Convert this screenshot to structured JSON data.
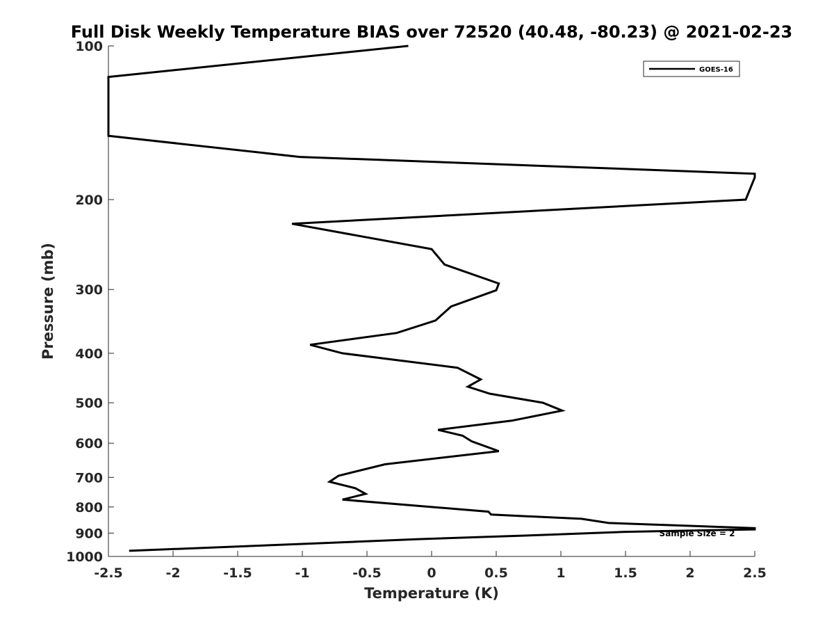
{
  "chart_data": {
    "type": "line",
    "title": "Full Disk Weekly Temperature BIAS over 72520 (40.48, -80.23) @ 2021-02-23",
    "xlabel": "Temperature (K)",
    "ylabel": "Pressure (mb)",
    "xlim": [
      -2.5,
      2.5
    ],
    "ylim": [
      1000,
      100
    ],
    "yscale": "log",
    "yreversed": true,
    "x_ticks": [
      -2.5,
      -2,
      -1.5,
      -1,
      -0.5,
      0,
      0.5,
      1,
      1.5,
      2,
      2.5
    ],
    "x_tick_labels": [
      "-2.5",
      "-2",
      "-1.5",
      "-1",
      "-0.5",
      "0",
      "0.5",
      "1",
      "1.5",
      "2",
      "2.5"
    ],
    "y_ticks": [
      100,
      200,
      300,
      400,
      500,
      600,
      700,
      800,
      900,
      1000
    ],
    "y_tick_labels": [
      "100",
      "200",
      "300",
      "400",
      "500",
      "600",
      "700",
      "800",
      "900",
      "1000"
    ],
    "grid": false,
    "legend_position": "top-right",
    "annotation": "Sample Size = 2",
    "series": [
      {
        "name": "GOES-16",
        "color": "#000000",
        "points": [
          [
            -0.18,
            100
          ],
          [
            -2.5,
            115
          ],
          [
            -2.5,
            150
          ],
          [
            -1.02,
            165
          ],
          [
            2.5,
            178
          ],
          [
            2.5,
            181
          ],
          [
            2.43,
            200
          ],
          [
            -1.08,
            223
          ],
          [
            0.0,
            250
          ],
          [
            0.1,
            268
          ],
          [
            0.52,
            292
          ],
          [
            0.5,
            301
          ],
          [
            0.15,
            324
          ],
          [
            0.03,
            345
          ],
          [
            -0.27,
            365
          ],
          [
            -0.94,
            385
          ],
          [
            -0.69,
            400
          ],
          [
            0.2,
            427
          ],
          [
            0.38,
            450
          ],
          [
            0.28,
            465
          ],
          [
            0.45,
            480
          ],
          [
            0.86,
            500
          ],
          [
            1.01,
            518
          ],
          [
            0.62,
            542
          ],
          [
            0.05,
            565
          ],
          [
            0.24,
            580
          ],
          [
            0.31,
            595
          ],
          [
            0.52,
            622
          ],
          [
            -0.36,
            660
          ],
          [
            -0.72,
            695
          ],
          [
            -0.79,
            714
          ],
          [
            -0.59,
            735
          ],
          [
            -0.51,
            754
          ],
          [
            -0.69,
            774
          ],
          [
            0.44,
            817
          ],
          [
            0.46,
            828
          ],
          [
            1.16,
            844
          ],
          [
            1.37,
            860
          ],
          [
            2.5,
            880
          ],
          [
            2.5,
            885
          ],
          [
            1.5,
            895
          ],
          [
            0.89,
            907
          ],
          [
            -0.1,
            925
          ],
          [
            -1.0,
            945
          ],
          [
            -2.34,
            975
          ]
        ]
      }
    ]
  }
}
